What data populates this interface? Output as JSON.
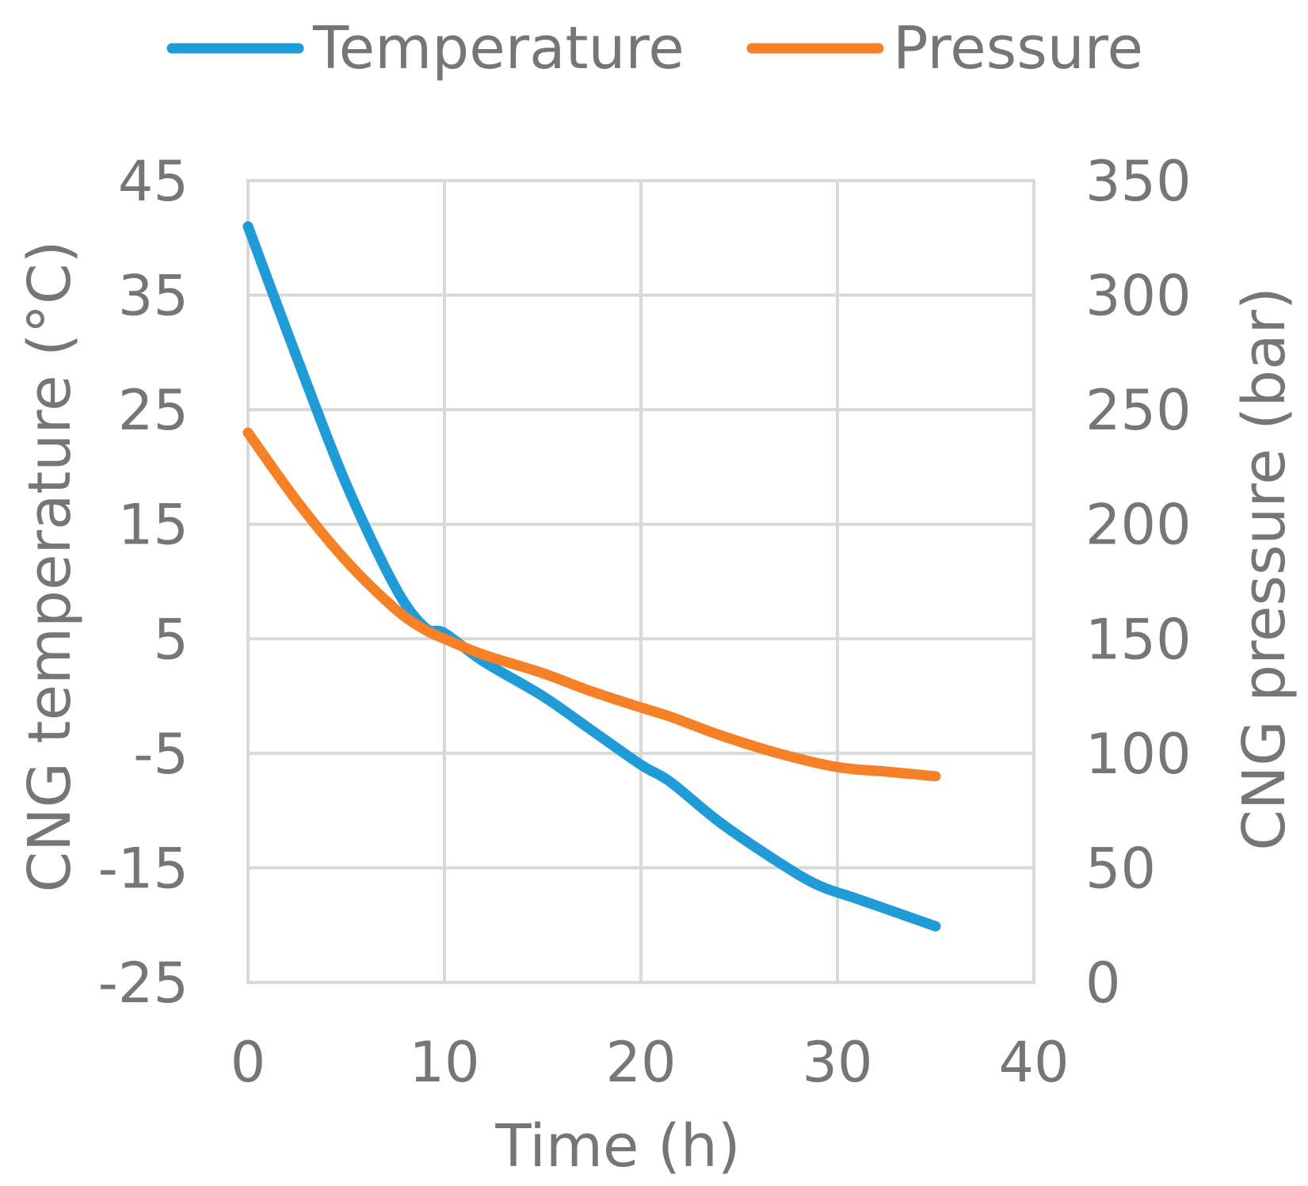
{
  "chart_data": {
    "type": "line",
    "title": "",
    "xlabel": "Time (h)",
    "ylabel_left": "CNG temperature (°C)",
    "ylabel_right": "CNG pressure (bar)",
    "xlim": [
      0,
      40
    ],
    "ylim_left": [
      -25,
      45
    ],
    "ylim_right": [
      0,
      350
    ],
    "x_ticks": [
      "0",
      "10",
      "20",
      "30",
      "40"
    ],
    "y_left_ticks": [
      "45",
      "35",
      "25",
      "15",
      "5",
      "-5",
      "-15",
      "-25"
    ],
    "y_right_ticks": [
      "350",
      "300",
      "250",
      "200",
      "150",
      "100",
      "50",
      "0"
    ],
    "grid": true,
    "legend_position": "top",
    "colors": {
      "temperature": "#1f9bd7",
      "pressure": "#f58025",
      "grid": "#d9d9d9",
      "text": "#767676"
    },
    "series": [
      {
        "name": "Temperature",
        "axis": "left",
        "x": [
          0,
          2.5,
          5,
          7.5,
          9,
          10,
          12,
          15,
          17.5,
          20,
          21.5,
          24,
          27,
          29,
          31,
          33,
          35
        ],
        "values": [
          41,
          29.5,
          18.5,
          9.5,
          6,
          5.5,
          3,
          0,
          -3,
          -6,
          -7.5,
          -11,
          -14.5,
          -16.5,
          -17.7,
          -18.9,
          -20.1
        ]
      },
      {
        "name": "Pressure",
        "axis": "right",
        "x": [
          0,
          2.5,
          5,
          7.5,
          9,
          10,
          12,
          15,
          17.5,
          20,
          21.5,
          24,
          27,
          30,
          32.5,
          35
        ],
        "values": [
          240,
          210,
          184,
          163,
          154,
          150,
          143,
          135,
          127,
          120,
          116,
          108,
          100,
          94,
          92,
          90
        ]
      }
    ]
  }
}
